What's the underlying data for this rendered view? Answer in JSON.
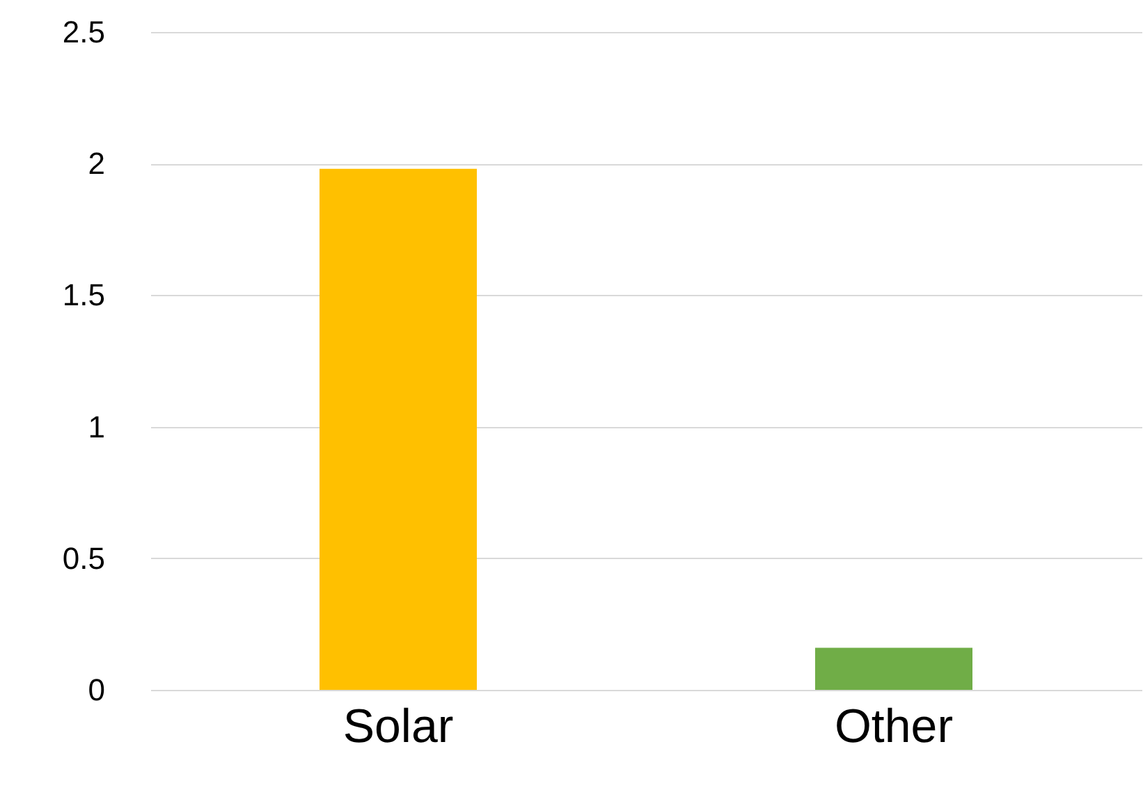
{
  "chart_data": {
    "type": "bar",
    "categories": [
      "Solar",
      "Other"
    ],
    "values": [
      1.98,
      0.16
    ],
    "colors": [
      "#ffc000",
      "#70ad47"
    ],
    "ylim": [
      0,
      2.5
    ],
    "yticks": [
      0,
      0.5,
      1,
      1.5,
      2,
      2.5
    ],
    "grid": "y"
  }
}
